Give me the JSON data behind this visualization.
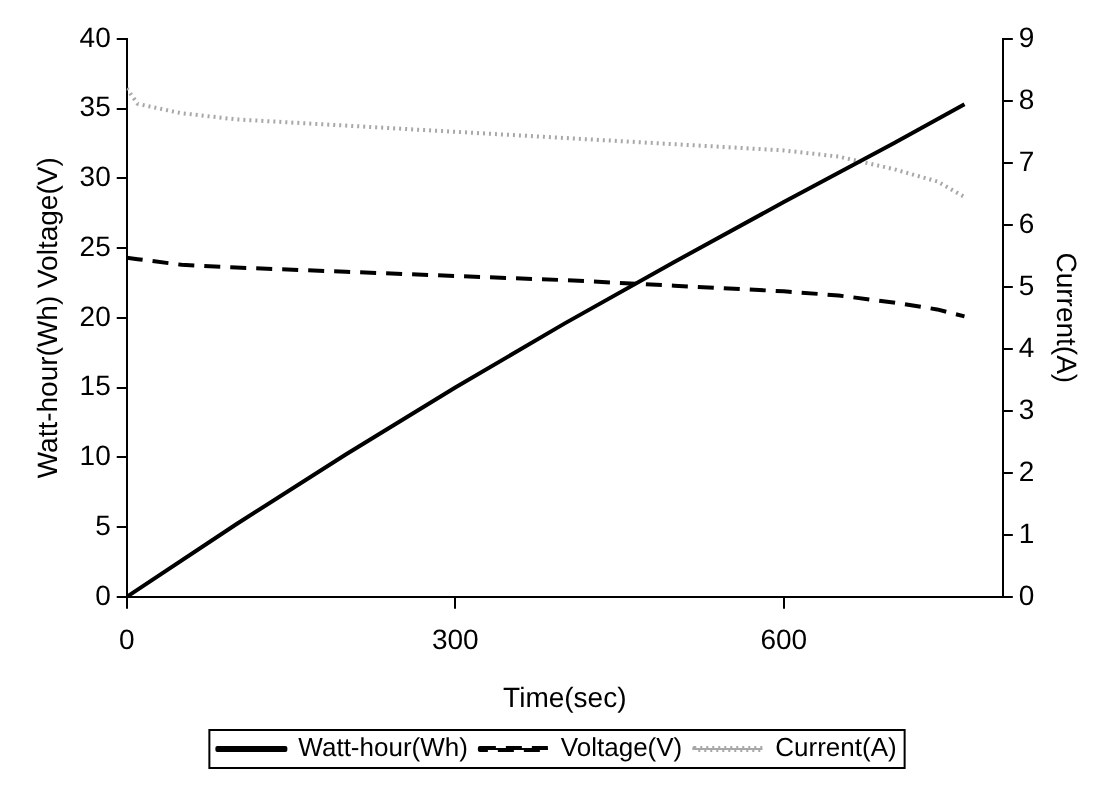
{
  "chart_data": {
    "type": "line",
    "xlabel": "Time(sec)",
    "ylabel": "Watt-hour(Wh) Voltage(V)",
    "y2label": "Current(A)",
    "xlim": [
      0,
      800
    ],
    "xticks": [
      0,
      300,
      600
    ],
    "ylim": [
      0,
      40
    ],
    "yticks": [
      0,
      5,
      10,
      15,
      20,
      25,
      30,
      35,
      40
    ],
    "y2lim": [
      0,
      9
    ],
    "y2ticks": [
      0,
      1,
      2,
      3,
      4,
      5,
      6,
      7,
      8,
      9
    ],
    "grid": false,
    "legend": "bottom",
    "marker": "none",
    "series": [
      {
        "name": "Watt-hour(Wh)",
        "color": "#000000",
        "line_style": "solid",
        "x": [
          0,
          100,
          200,
          300,
          400,
          500,
          600,
          700,
          765
        ],
        "values": [
          0,
          5.2,
          10.2,
          15.0,
          19.6,
          24.0,
          28.3,
          32.5,
          35.3
        ]
      },
      {
        "name": "Voltage(V)",
        "color": "#000000",
        "line_style": "dashed",
        "x": [
          0,
          10,
          50,
          100,
          200,
          300,
          400,
          500,
          600,
          650,
          700,
          740,
          765
        ],
        "values": [
          24.3,
          24.2,
          23.8,
          23.6,
          23.3,
          23.0,
          22.7,
          22.3,
          21.9,
          21.6,
          21.1,
          20.6,
          20.1
        ]
      },
      {
        "name": "Current(A)",
        "color": "#a8a8a8",
        "line_style": "dotted",
        "axis": "y2",
        "x": [
          0,
          10,
          50,
          100,
          200,
          300,
          400,
          500,
          600,
          650,
          700,
          740,
          765
        ],
        "values": [
          8.2,
          7.95,
          7.8,
          7.7,
          7.6,
          7.5,
          7.4,
          7.3,
          7.2,
          7.1,
          6.9,
          6.7,
          6.45
        ]
      }
    ]
  }
}
